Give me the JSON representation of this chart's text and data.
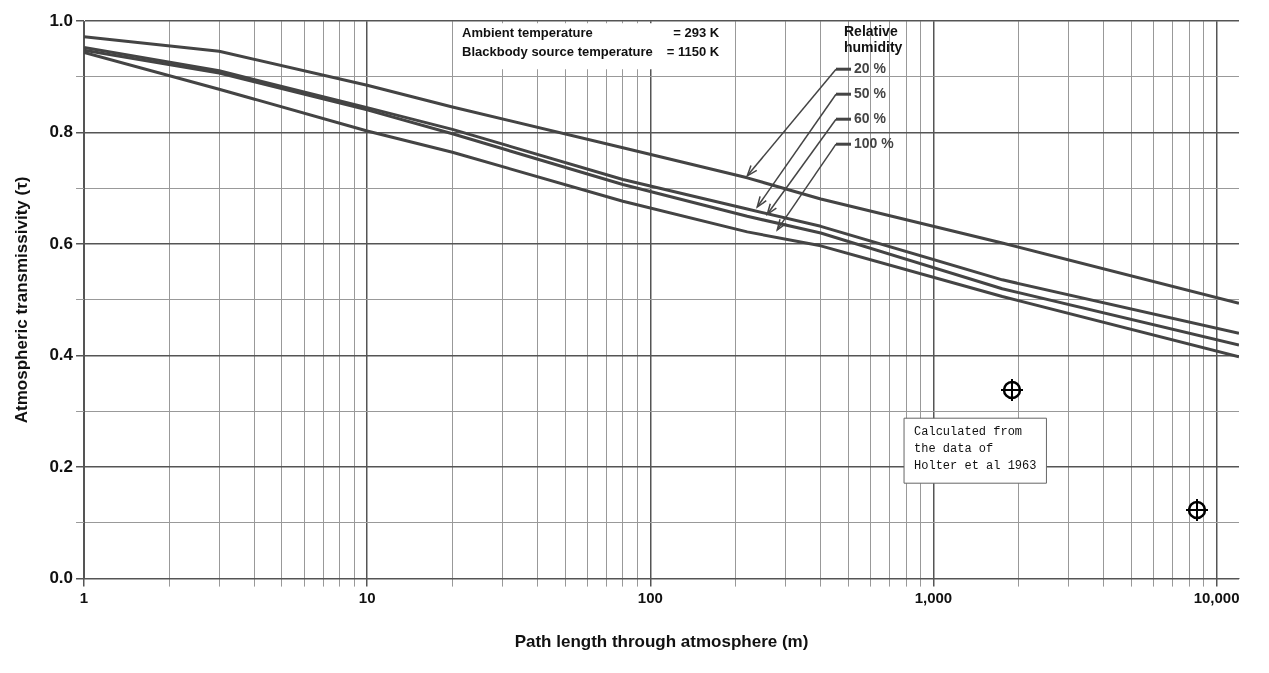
{
  "chart_data": {
    "type": "line",
    "xlabel": "Path length through atmosphere (m)",
    "ylabel": "Atmospheric transmissivity (τ)",
    "legend_title": "Relative humidity",
    "legend": "top right",
    "log": "x",
    "grid": true,
    "marker": "none",
    "line_style": "solid",
    "x": [
      1,
      3,
      10,
      20,
      80,
      220,
      400,
      1750,
      12000
    ],
    "xlim": [
      1,
      12000
    ],
    "xticks": [
      {
        "value": 1,
        "label": "1"
      },
      {
        "value": 2,
        "label": null
      },
      {
        "value": 3,
        "label": null
      },
      {
        "value": 4,
        "label": null
      },
      {
        "value": 5,
        "label": null
      },
      {
        "value": 6,
        "label": null
      },
      {
        "value": 7,
        "label": null
      },
      {
        "value": 8,
        "label": null
      },
      {
        "value": 9,
        "label": null
      },
      {
        "value": 10,
        "label": "10"
      },
      {
        "value": 20,
        "label": null
      },
      {
        "value": 30,
        "label": null
      },
      {
        "value": 40,
        "label": null
      },
      {
        "value": 50,
        "label": null
      },
      {
        "value": 60,
        "label": null
      },
      {
        "value": 70,
        "label": null
      },
      {
        "value": 80,
        "label": null
      },
      {
        "value": 90,
        "label": null
      },
      {
        "value": 100,
        "label": "100"
      },
      {
        "value": 200,
        "label": null
      },
      {
        "value": 300,
        "label": null
      },
      {
        "value": 400,
        "label": null
      },
      {
        "value": 500,
        "label": null
      },
      {
        "value": 600,
        "label": null
      },
      {
        "value": 700,
        "label": null
      },
      {
        "value": 800,
        "label": null
      },
      {
        "value": 900,
        "label": null
      },
      {
        "value": 1000,
        "label": "1,000"
      },
      {
        "value": 2000,
        "label": null
      },
      {
        "value": 3000,
        "label": null
      },
      {
        "value": 4000,
        "label": null
      },
      {
        "value": 5000,
        "label": null
      },
      {
        "value": 6000,
        "label": null
      },
      {
        "value": 7000,
        "label": null
      },
      {
        "value": 8000,
        "label": null
      },
      {
        "value": 9000,
        "label": null
      },
      {
        "value": 10000,
        "label": "10,000"
      }
    ],
    "ylim": [
      0,
      1
    ],
    "yticks": [
      {
        "value": 0,
        "label": "0.0"
      },
      {
        "value": 0.1,
        "label": null
      },
      {
        "value": 0.2,
        "label": "0.2"
      },
      {
        "value": 0.3,
        "label": null
      },
      {
        "value": 0.4,
        "label": "0.4"
      },
      {
        "value": 0.5,
        "label": null
      },
      {
        "value": 0.6,
        "label": "0.6"
      },
      {
        "value": 0.7,
        "label": null
      },
      {
        "value": 0.8,
        "label": "0.8"
      },
      {
        "value": 0.9,
        "label": null
      },
      {
        "value": 1,
        "label": "1.0"
      }
    ],
    "series": [
      {
        "name": "20 %",
        "color": "#444444",
        "values": [
          0.972,
          0.946,
          0.885,
          0.846,
          0.773,
          0.719,
          0.681,
          0.602,
          0.494
        ]
      },
      {
        "name": "50 %",
        "color": "#444444",
        "values": [
          0.953,
          0.911,
          0.845,
          0.806,
          0.716,
          0.663,
          0.632,
          0.536,
          0.44
        ]
      },
      {
        "name": "60 %",
        "color": "#444444",
        "values": [
          0.948,
          0.907,
          0.841,
          0.798,
          0.707,
          0.65,
          0.62,
          0.52,
          0.419
        ]
      },
      {
        "name": "100 %",
        "color": "#444444",
        "values": [
          0.944,
          0.878,
          0.803,
          0.765,
          0.677,
          0.622,
          0.597,
          0.506,
          0.398
        ]
      }
    ],
    "annotations": [
      "Ambient temperature = 293 K",
      "Blackbody source temperature = 1150 K",
      "Calculated from the data of Holter et al 1963"
    ]
  }
}
